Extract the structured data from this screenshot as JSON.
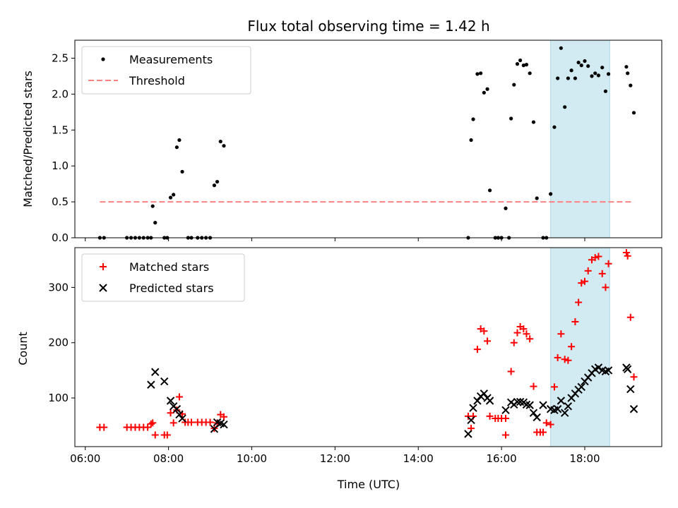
{
  "chart_data": {
    "type": "scatter",
    "title": "Flux total observing time = 1.42 h",
    "xlabel": "Time (UTC)",
    "x_ticks": [
      "06:00",
      "08:00",
      "10:00",
      "12:00",
      "14:00",
      "16:00",
      "18:00"
    ],
    "x_tick_hours": [
      6,
      8,
      10,
      12,
      14,
      16,
      18
    ],
    "xlim_hours": [
      5.75,
      19.85
    ],
    "highlight_span_hours": [
      17.18,
      18.6
    ],
    "highlight_color": "#add8e6",
    "panels": [
      {
        "ylabel": "Matched/Predicted stars",
        "ylim": [
          0,
          2.75
        ],
        "y_ticks": [
          0.0,
          0.5,
          1.0,
          1.5,
          2.0,
          2.5
        ],
        "y_tick_labels": [
          "0.0",
          "0.5",
          "1.0",
          "1.5",
          "2.0",
          "2.5"
        ],
        "legend_position": "upper-left",
        "series": [
          {
            "name": "Measurements",
            "marker": "dot",
            "color": "#000000",
            "points": [
              [
                6.35,
                0
              ],
              [
                6.45,
                0
              ],
              [
                7.0,
                0
              ],
              [
                7.1,
                0
              ],
              [
                7.2,
                0
              ],
              [
                7.3,
                0
              ],
              [
                7.4,
                0
              ],
              [
                7.5,
                0
              ],
              [
                7.58,
                0
              ],
              [
                7.62,
                0.44
              ],
              [
                7.68,
                0.21
              ],
              [
                7.9,
                0
              ],
              [
                7.97,
                0
              ],
              [
                8.05,
                0.56
              ],
              [
                8.12,
                0.6
              ],
              [
                8.2,
                1.26
              ],
              [
                8.26,
                1.36
              ],
              [
                8.33,
                0.92
              ],
              [
                8.47,
                0
              ],
              [
                8.55,
                0
              ],
              [
                8.7,
                0
              ],
              [
                8.8,
                0
              ],
              [
                8.9,
                0
              ],
              [
                9.0,
                0
              ],
              [
                9.1,
                0.73
              ],
              [
                9.17,
                0.78
              ],
              [
                9.25,
                1.34
              ],
              [
                9.33,
                1.28
              ],
              [
                15.2,
                0
              ],
              [
                15.27,
                1.36
              ],
              [
                15.32,
                1.65
              ],
              [
                15.42,
                2.28
              ],
              [
                15.5,
                2.29
              ],
              [
                15.58,
                2.02
              ],
              [
                15.66,
                2.07
              ],
              [
                15.72,
                0.66
              ],
              [
                15.85,
                0
              ],
              [
                15.92,
                0
              ],
              [
                16.0,
                0
              ],
              [
                16.1,
                0.41
              ],
              [
                16.18,
                0
              ],
              [
                16.23,
                1.66
              ],
              [
                16.3,
                2.13
              ],
              [
                16.38,
                2.42
              ],
              [
                16.45,
                2.47
              ],
              [
                16.53,
                2.4
              ],
              [
                16.6,
                2.41
              ],
              [
                16.68,
                2.29
              ],
              [
                16.77,
                1.61
              ],
              [
                16.85,
                0.55
              ],
              [
                17.0,
                0
              ],
              [
                17.08,
                0
              ],
              [
                17.18,
                0.61
              ],
              [
                17.27,
                1.54
              ],
              [
                17.35,
                2.22
              ],
              [
                17.43,
                2.64
              ],
              [
                17.52,
                1.82
              ],
              [
                17.6,
                2.22
              ],
              [
                17.68,
                2.33
              ],
              [
                17.77,
                2.22
              ],
              [
                17.85,
                2.44
              ],
              [
                17.92,
                2.4
              ],
              [
                18.0,
                2.46
              ],
              [
                18.08,
                2.39
              ],
              [
                18.17,
                2.25
              ],
              [
                18.25,
                2.29
              ],
              [
                18.33,
                2.26
              ],
              [
                18.42,
                2.37
              ],
              [
                18.5,
                2.04
              ],
              [
                18.57,
                2.28
              ],
              [
                19.0,
                2.38
              ],
              [
                19.03,
                2.29
              ],
              [
                19.1,
                2.12
              ],
              [
                19.18,
                1.74
              ]
            ]
          },
          {
            "name": "Threshold",
            "marker": "dashed-line",
            "color": "#ff8080",
            "points": [
              [
                6.35,
                0.5
              ],
              [
                19.18,
                0.5
              ]
            ]
          }
        ]
      },
      {
        "ylabel": "Count",
        "ylim": [
          12,
          372
        ],
        "y_ticks": [
          100,
          200,
          300
        ],
        "y_tick_labels": [
          "100",
          "200",
          "300"
        ],
        "legend_position": "upper-left",
        "series": [
          {
            "name": "Matched stars",
            "marker": "plus",
            "color": "#ff0000",
            "points": [
              [
                6.35,
                47
              ],
              [
                6.45,
                47
              ],
              [
                7.0,
                47
              ],
              [
                7.1,
                47
              ],
              [
                7.2,
                47
              ],
              [
                7.3,
                47
              ],
              [
                7.4,
                47
              ],
              [
                7.5,
                47
              ],
              [
                7.58,
                53
              ],
              [
                7.62,
                55
              ],
              [
                7.68,
                33
              ],
              [
                7.9,
                33
              ],
              [
                7.97,
                33
              ],
              [
                8.05,
                73
              ],
              [
                8.12,
                55
              ],
              [
                8.2,
                78
              ],
              [
                8.26,
                102
              ],
              [
                8.33,
                71
              ],
              [
                8.4,
                56
              ],
              [
                8.47,
                56
              ],
              [
                8.55,
                56
              ],
              [
                8.7,
                56
              ],
              [
                8.8,
                56
              ],
              [
                8.9,
                56
              ],
              [
                9.0,
                56
              ],
              [
                9.1,
                45
              ],
              [
                9.17,
                55
              ],
              [
                9.25,
                70
              ],
              [
                9.33,
                66
              ],
              [
                15.2,
                67
              ],
              [
                15.27,
                45
              ],
              [
                15.32,
                67
              ],
              [
                15.42,
                188
              ],
              [
                15.5,
                225
              ],
              [
                15.58,
                221
              ],
              [
                15.66,
                203
              ],
              [
                15.72,
                67
              ],
              [
                15.85,
                63
              ],
              [
                15.92,
                63
              ],
              [
                16.0,
                63
              ],
              [
                16.1,
                63
              ],
              [
                16.1,
                33
              ],
              [
                16.23,
                148
              ],
              [
                16.3,
                200
              ],
              [
                16.38,
                218
              ],
              [
                16.45,
                229
              ],
              [
                16.53,
                225
              ],
              [
                16.6,
                216
              ],
              [
                16.68,
                207
              ],
              [
                16.77,
                121
              ],
              [
                16.85,
                38
              ],
              [
                16.93,
                38
              ],
              [
                17.0,
                38
              ],
              [
                17.08,
                55
              ],
              [
                17.18,
                52
              ],
              [
                17.27,
                120
              ],
              [
                17.35,
                173
              ],
              [
                17.43,
                216
              ],
              [
                17.52,
                170
              ],
              [
                17.6,
                168
              ],
              [
                17.68,
                193
              ],
              [
                17.77,
                238
              ],
              [
                17.85,
                273
              ],
              [
                17.92,
                308
              ],
              [
                18.0,
                311
              ],
              [
                18.08,
                330
              ],
              [
                18.17,
                350
              ],
              [
                18.25,
                354
              ],
              [
                18.33,
                356
              ],
              [
                18.42,
                325
              ],
              [
                18.5,
                300
              ],
              [
                18.57,
                343
              ],
              [
                19.0,
                363
              ],
              [
                19.03,
                357
              ],
              [
                19.1,
                246
              ],
              [
                19.18,
                138
              ]
            ]
          },
          {
            "name": "Predicted stars",
            "marker": "x",
            "color": "#000000",
            "points": [
              [
                7.58,
                124
              ],
              [
                7.68,
                147
              ],
              [
                7.9,
                130
              ],
              [
                8.05,
                95
              ],
              [
                8.12,
                85
              ],
              [
                8.2,
                80
              ],
              [
                8.26,
                70
              ],
              [
                8.33,
                63
              ],
              [
                9.1,
                44
              ],
              [
                9.17,
                56
              ],
              [
                9.25,
                54
              ],
              [
                9.33,
                52
              ],
              [
                15.2,
                35
              ],
              [
                15.27,
                60
              ],
              [
                15.32,
                82
              ],
              [
                15.42,
                95
              ],
              [
                15.5,
                103
              ],
              [
                15.58,
                108
              ],
              [
                15.66,
                100
              ],
              [
                15.72,
                95
              ],
              [
                16.1,
                78
              ],
              [
                16.23,
                92
              ],
              [
                16.3,
                88
              ],
              [
                16.38,
                93
              ],
              [
                16.45,
                93
              ],
              [
                16.53,
                92
              ],
              [
                16.6,
                88
              ],
              [
                16.68,
                87
              ],
              [
                16.77,
                73
              ],
              [
                16.85,
                65
              ],
              [
                17.0,
                87
              ],
              [
                17.18,
                80
              ],
              [
                17.27,
                78
              ],
              [
                17.35,
                80
              ],
              [
                17.43,
                95
              ],
              [
                17.52,
                73
              ],
              [
                17.6,
                85
              ],
              [
                17.68,
                100
              ],
              [
                17.77,
                108
              ],
              [
                17.85,
                115
              ],
              [
                17.92,
                120
              ],
              [
                18.0,
                130
              ],
              [
                18.08,
                137
              ],
              [
                18.17,
                145
              ],
              [
                18.25,
                152
              ],
              [
                18.33,
                155
              ],
              [
                18.42,
                150
              ],
              [
                18.5,
                148
              ],
              [
                18.57,
                150
              ],
              [
                19.0,
                155
              ],
              [
                19.03,
                152
              ],
              [
                19.1,
                116
              ],
              [
                19.18,
                80
              ]
            ]
          }
        ]
      }
    ]
  }
}
